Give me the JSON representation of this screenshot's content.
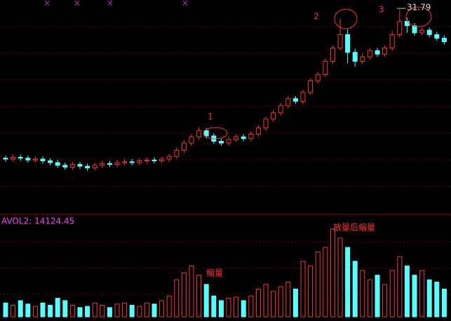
{
  "chart_data": {
    "type": "candlestick",
    "open": [
      15.1,
      15.0,
      15.2,
      15.1,
      14.9,
      15.0,
      14.8,
      14.6,
      14.3,
      14.1,
      14.4,
      14.2,
      14.0,
      14.3,
      14.5,
      14.4,
      14.6,
      14.7,
      14.6,
      14.8,
      14.9,
      14.8,
      15.0,
      15.3,
      16.0,
      16.8,
      17.5,
      18.2,
      17.6,
      17.0,
      16.8,
      17.2,
      17.5,
      17.3,
      17.8,
      18.5,
      19.5,
      20.2,
      21.0,
      21.8,
      21.5,
      22.5,
      23.8,
      24.5,
      26.0,
      27.5,
      29.0,
      27.0,
      26.0,
      26.5,
      27.2,
      26.8,
      27.5,
      29.0,
      30.5,
      30.0,
      29.2,
      29.5,
      29.0,
      28.6
    ],
    "high": [
      15.4,
      15.5,
      15.5,
      15.4,
      15.3,
      15.3,
      15.1,
      14.9,
      14.6,
      14.7,
      14.7,
      14.5,
      14.6,
      14.8,
      14.8,
      14.9,
      15.0,
      15.0,
      15.1,
      15.2,
      15.2,
      15.3,
      15.6,
      16.3,
      17.1,
      17.8,
      18.6,
      18.5,
      17.9,
      17.3,
      17.5,
      17.8,
      17.8,
      18.1,
      18.8,
      19.8,
      20.5,
      21.3,
      22.1,
      22.1,
      22.8,
      24.1,
      24.8,
      26.3,
      27.8,
      30.8,
      29.6,
      27.4,
      26.9,
      27.5,
      27.5,
      27.8,
      29.4,
      31.79,
      30.9,
      30.3,
      29.8,
      29.8,
      29.3,
      28.9
    ],
    "low": [
      14.7,
      14.7,
      14.8,
      14.6,
      14.6,
      14.5,
      14.3,
      14.0,
      13.8,
      13.8,
      13.9,
      13.7,
      13.7,
      14.0,
      14.1,
      14.1,
      14.3,
      14.3,
      14.3,
      14.5,
      14.5,
      14.5,
      14.7,
      15.0,
      15.7,
      16.5,
      17.2,
      17.3,
      16.7,
      16.5,
      16.5,
      16.9,
      17.0,
      17.0,
      17.5,
      18.2,
      19.2,
      19.9,
      20.7,
      21.2,
      21.2,
      22.2,
      23.5,
      24.2,
      25.7,
      27.2,
      25.8,
      25.4,
      25.7,
      26.2,
      26.5,
      26.5,
      27.2,
      28.7,
      29.2,
      28.9,
      28.9,
      28.7,
      28.3,
      27.9
    ],
    "close": [
      15.0,
      15.2,
      15.1,
      14.9,
      15.0,
      14.8,
      14.6,
      14.3,
      14.1,
      14.4,
      14.2,
      14.0,
      14.3,
      14.5,
      14.4,
      14.6,
      14.7,
      14.6,
      14.8,
      14.9,
      14.8,
      15.0,
      15.3,
      16.0,
      16.8,
      17.5,
      18.2,
      17.6,
      17.0,
      16.8,
      17.2,
      17.5,
      17.3,
      17.8,
      18.5,
      19.5,
      20.2,
      21.0,
      21.8,
      21.5,
      22.5,
      23.8,
      24.5,
      26.0,
      27.5,
      29.0,
      27.0,
      26.0,
      26.5,
      27.2,
      26.8,
      27.5,
      29.0,
      30.5,
      30.0,
      29.2,
      29.5,
      29.0,
      28.6,
      28.2
    ],
    "volume": [
      6000,
      5000,
      7000,
      5500,
      4500,
      6000,
      5000,
      8000,
      7000,
      5000,
      4000,
      4500,
      6000,
      5000,
      4000,
      5500,
      6000,
      5000,
      4500,
      6000,
      5500,
      7000,
      9000,
      16000,
      19000,
      22000,
      18000,
      14000,
      9000,
      7000,
      8000,
      8500,
      7000,
      9000,
      12000,
      14000,
      11000,
      13000,
      15000,
      12000,
      24000,
      22000,
      28000,
      30000,
      38000,
      34000,
      30000,
      24000,
      20000,
      16000,
      18000,
      14000,
      20000,
      26000,
      22000,
      18000,
      20000,
      16000,
      15000,
      12000
    ],
    "ylim": [
      12,
      32.5
    ],
    "volume_ylim": [
      0,
      40000
    ],
    "up_color": "#ff3232",
    "down_color": "#54ffff",
    "volume_label": "AVOL2: 14124.45",
    "annotations": [
      "1",
      "2",
      "3",
      "缩量",
      "放量后缩量"
    ]
  }
}
